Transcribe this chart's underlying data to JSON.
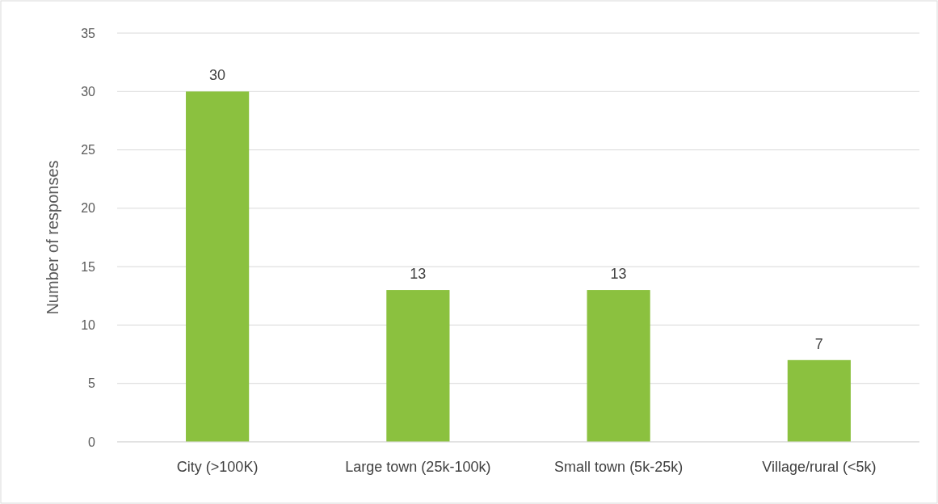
{
  "chart_data": {
    "type": "bar",
    "ylabel": "Number of responses",
    "categories": [
      "City (>100K)",
      "Large town (25k-100k)",
      "Small town (5k-25k)",
      "Village/rural (<5k)"
    ],
    "values": [
      30,
      13,
      13,
      7
    ],
    "color": "#8bc13f",
    "ylim": [
      0,
      35
    ],
    "yticks": [
      0,
      5,
      10,
      15,
      20,
      25,
      30,
      35
    ],
    "grid": "y",
    "data_labels": true
  }
}
